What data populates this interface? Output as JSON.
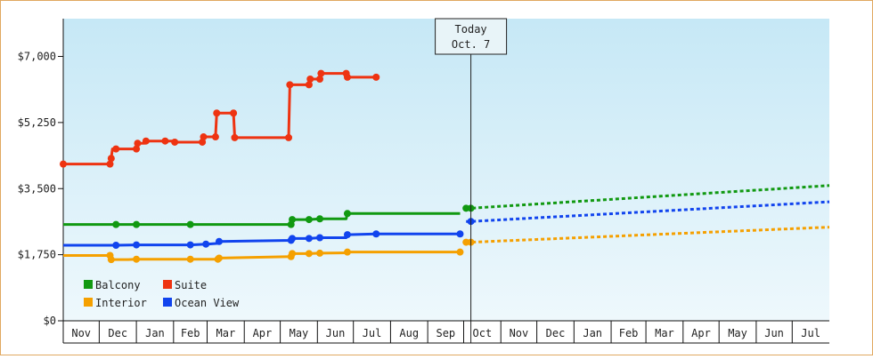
{
  "chart_data": {
    "type": "line",
    "title": "",
    "xlabel": "",
    "ylabel": "",
    "x_start": "2018-11-01",
    "x_end": "2020-08-01",
    "x_tick_labels": [
      "Nov",
      "Dec",
      "Jan",
      "Feb",
      "Mar",
      "Apr",
      "May",
      "Jun",
      "Jul",
      "Aug",
      "Sep",
      "Oct",
      "Nov",
      "Dec",
      "Jan",
      "Feb",
      "Mar",
      "Apr",
      "May",
      "Jun",
      "Jul"
    ],
    "x_tick_dates": [
      "2018-11-01",
      "2018-12-01",
      "2019-01-01",
      "2019-02-01",
      "2019-03-01",
      "2019-04-01",
      "2019-05-01",
      "2019-06-01",
      "2019-07-01",
      "2019-08-01",
      "2019-09-01",
      "2019-10-01",
      "2019-11-01",
      "2019-12-01",
      "2020-01-01",
      "2020-02-01",
      "2020-03-01",
      "2020-04-01",
      "2020-05-01",
      "2020-06-01",
      "2020-07-01"
    ],
    "ylim": [
      0,
      8000
    ],
    "y_ticks": [
      0,
      1750,
      3500,
      5250,
      7000
    ],
    "y_tick_labels": [
      "$0",
      "$1,750",
      "$3,500",
      "$5,250",
      "$7,000"
    ],
    "grid": false,
    "legend_position": "bottom-left",
    "today_marker": {
      "line1": "Today",
      "line2": "Oct. 7",
      "date": "2019-10-07"
    },
    "series": [
      {
        "name": "Balcony",
        "color": "#119911",
        "values": [
          [
            "2018-11-01",
            2550
          ],
          [
            "2018-12-15",
            2550
          ],
          [
            "2019-01-01",
            2550
          ],
          [
            "2019-02-15",
            2550
          ],
          [
            "2019-05-10",
            2550
          ],
          [
            "2019-05-11",
            2680
          ],
          [
            "2019-05-25",
            2680
          ],
          [
            "2019-06-03",
            2700
          ],
          [
            "2019-06-25",
            2700
          ],
          [
            "2019-06-26",
            2840
          ],
          [
            "2019-09-28",
            2840
          ]
        ],
        "forecast": [
          [
            "2019-10-03",
            2980
          ],
          [
            "2019-10-07",
            2980
          ],
          [
            "2020-08-01",
            3580
          ]
        ]
      },
      {
        "name": "Suite",
        "color": "#ee3311",
        "values": [
          [
            "2018-11-01",
            4150
          ],
          [
            "2018-12-10",
            4150
          ],
          [
            "2018-12-11",
            4300
          ],
          [
            "2018-12-12",
            4550
          ],
          [
            "2018-12-15",
            4550
          ],
          [
            "2019-01-01",
            4550
          ],
          [
            "2019-01-02",
            4700
          ],
          [
            "2019-01-08",
            4700
          ],
          [
            "2019-01-09",
            4760
          ],
          [
            "2019-01-25",
            4760
          ],
          [
            "2019-02-01",
            4760
          ],
          [
            "2019-02-02",
            4730
          ],
          [
            "2019-02-25",
            4730
          ],
          [
            "2019-02-26",
            4870
          ],
          [
            "2019-03-08",
            4870
          ],
          [
            "2019-03-09",
            5500
          ],
          [
            "2019-03-23",
            5500
          ],
          [
            "2019-03-24",
            4850
          ],
          [
            "2019-05-08",
            4850
          ],
          [
            "2019-05-09",
            6250
          ],
          [
            "2019-05-25",
            6250
          ],
          [
            "2019-05-26",
            6400
          ],
          [
            "2019-06-03",
            6400
          ],
          [
            "2019-06-04",
            6550
          ],
          [
            "2019-06-25",
            6550
          ],
          [
            "2019-06-26",
            6450
          ],
          [
            "2019-07-20",
            6450
          ]
        ],
        "forecast": []
      },
      {
        "name": "Interior",
        "color": "#f5a000",
        "values": [
          [
            "2018-11-01",
            1730
          ],
          [
            "2018-12-10",
            1730
          ],
          [
            "2018-12-11",
            1620
          ],
          [
            "2018-12-25",
            1620
          ],
          [
            "2019-01-01",
            1630
          ],
          [
            "2019-02-15",
            1630
          ],
          [
            "2019-03-01",
            1630
          ],
          [
            "2019-03-10",
            1630
          ],
          [
            "2019-03-11",
            1660
          ],
          [
            "2019-05-10",
            1700
          ],
          [
            "2019-05-11",
            1780
          ],
          [
            "2019-05-25",
            1780
          ],
          [
            "2019-06-03",
            1790
          ],
          [
            "2019-06-25",
            1800
          ],
          [
            "2019-06-26",
            1820
          ],
          [
            "2019-09-28",
            1820
          ]
        ],
        "forecast": [
          [
            "2019-10-03",
            2080
          ],
          [
            "2019-10-07",
            2080
          ],
          [
            "2020-08-01",
            2480
          ]
        ]
      },
      {
        "name": "Ocean View",
        "color": "#1144ee",
        "values": [
          [
            "2018-11-01",
            2000
          ],
          [
            "2018-12-15",
            2000
          ],
          [
            "2019-01-01",
            2010
          ],
          [
            "2019-02-15",
            2010
          ],
          [
            "2019-02-28",
            2030
          ],
          [
            "2019-03-01",
            2030
          ],
          [
            "2019-03-10",
            2050
          ],
          [
            "2019-03-11",
            2100
          ],
          [
            "2019-05-10",
            2130
          ],
          [
            "2019-05-11",
            2180
          ],
          [
            "2019-05-25",
            2180
          ],
          [
            "2019-06-03",
            2200
          ],
          [
            "2019-06-25",
            2200
          ],
          [
            "2019-06-26",
            2280
          ],
          [
            "2019-07-20",
            2300
          ],
          [
            "2019-09-28",
            2300
          ]
        ],
        "forecast": [
          [
            "2019-10-03",
            2630
          ],
          [
            "2019-10-07",
            2630
          ],
          [
            "2020-08-01",
            3150
          ]
        ]
      }
    ],
    "markers": {
      "Balcony": [
        "2019-01-01",
        "2018-12-15",
        "2019-02-15",
        "2019-05-10",
        "2019-05-11",
        "2019-05-25",
        "2019-06-03",
        "2019-06-26",
        "2019-10-03",
        "2019-10-07"
      ],
      "Suite": [
        "2018-11-01",
        "2018-12-10",
        "2018-12-11",
        "2018-12-15",
        "2019-01-01",
        "2019-01-02",
        "2019-01-09",
        "2019-01-25",
        "2019-02-02",
        "2019-02-25",
        "2019-02-26",
        "2019-03-08",
        "2019-03-09",
        "2019-03-23",
        "2019-03-24",
        "2019-05-08",
        "2019-05-09",
        "2019-05-25",
        "2019-05-26",
        "2019-06-03",
        "2019-06-04",
        "2019-06-25",
        "2019-06-26",
        "2019-07-20"
      ],
      "Interior": [
        "2018-12-10",
        "2018-12-11",
        "2019-01-01",
        "2019-02-15",
        "2019-03-10",
        "2019-03-11",
        "2019-05-10",
        "2019-05-11",
        "2019-05-25",
        "2019-06-03",
        "2019-06-26",
        "2019-09-28",
        "2019-10-03",
        "2019-10-07"
      ],
      "Ocean View": [
        "2018-12-15",
        "2019-01-01",
        "2019-02-15",
        "2019-02-28",
        "2019-03-11",
        "2019-05-10",
        "2019-05-11",
        "2019-05-25",
        "2019-06-03",
        "2019-06-26",
        "2019-07-20",
        "2019-09-28",
        "2019-10-07"
      ]
    }
  }
}
